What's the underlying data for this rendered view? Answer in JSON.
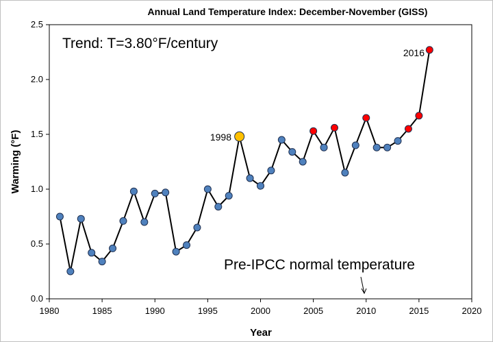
{
  "chart_data": {
    "type": "scatter",
    "title": "Annual Land Temperature Index: December-November (GISS)",
    "xlabel": "Year",
    "ylabel": "Warming (°F)",
    "xlim": [
      1980,
      2020
    ],
    "ylim": [
      0.0,
      2.5
    ],
    "x_ticks": [
      "1980",
      "1985",
      "1990",
      "1995",
      "2000",
      "2005",
      "2010",
      "2015",
      "2020"
    ],
    "y_ticks": [
      "0.0",
      "0.5",
      "1.0",
      "1.5",
      "2.0",
      "2.5"
    ],
    "grid": false,
    "legend": "none",
    "line_connected": true,
    "series": [
      {
        "x": [
          1981,
          1982,
          1983,
          1984,
          1985,
          1986,
          1987,
          1988,
          1989,
          1990,
          1991,
          1992,
          1993,
          1994,
          1995,
          1996,
          1997,
          1998,
          1999,
          2000,
          2001,
          2002,
          2003,
          2004,
          2005,
          2006,
          2007,
          2008,
          2009,
          2010,
          2011,
          2012,
          2013,
          2014,
          2015,
          2016
        ],
        "y": [
          0.75,
          0.25,
          0.73,
          0.42,
          0.34,
          0.46,
          0.71,
          0.98,
          0.7,
          0.96,
          0.97,
          0.43,
          0.49,
          0.65,
          1.0,
          0.84,
          0.94,
          1.48,
          1.1,
          1.03,
          1.17,
          1.45,
          1.34,
          1.25,
          1.53,
          1.38,
          1.56,
          1.15,
          1.4,
          1.65,
          1.38,
          1.38,
          1.44,
          1.55,
          1.67,
          2.27
        ],
        "point_colors": [
          "#4f81bd",
          "#4f81bd",
          "#4f81bd",
          "#4f81bd",
          "#4f81bd",
          "#4f81bd",
          "#4f81bd",
          "#4f81bd",
          "#4f81bd",
          "#4f81bd",
          "#4f81bd",
          "#4f81bd",
          "#4f81bd",
          "#4f81bd",
          "#4f81bd",
          "#4f81bd",
          "#4f81bd",
          "#ffc000",
          "#4f81bd",
          "#4f81bd",
          "#4f81bd",
          "#4f81bd",
          "#4f81bd",
          "#4f81bd",
          "#ff0000",
          "#4f81bd",
          "#ff0000",
          "#4f81bd",
          "#4f81bd",
          "#ff0000",
          "#4f81bd",
          "#4f81bd",
          "#4f81bd",
          "#ff0000",
          "#ff0000",
          "#ff0000"
        ]
      }
    ],
    "annotations": {
      "trend": "Trend: T=3.80°F/century",
      "pre_ipcc": "Pre-IPCC normal temperature",
      "label_1998": "1998",
      "label_2016": "2016"
    },
    "colors": {
      "line": "#000000",
      "default_point": "#4f81bd",
      "highlight_1998": "#ffc000",
      "record": "#ff0000",
      "marker_stroke": "#1f2f4f"
    }
  }
}
